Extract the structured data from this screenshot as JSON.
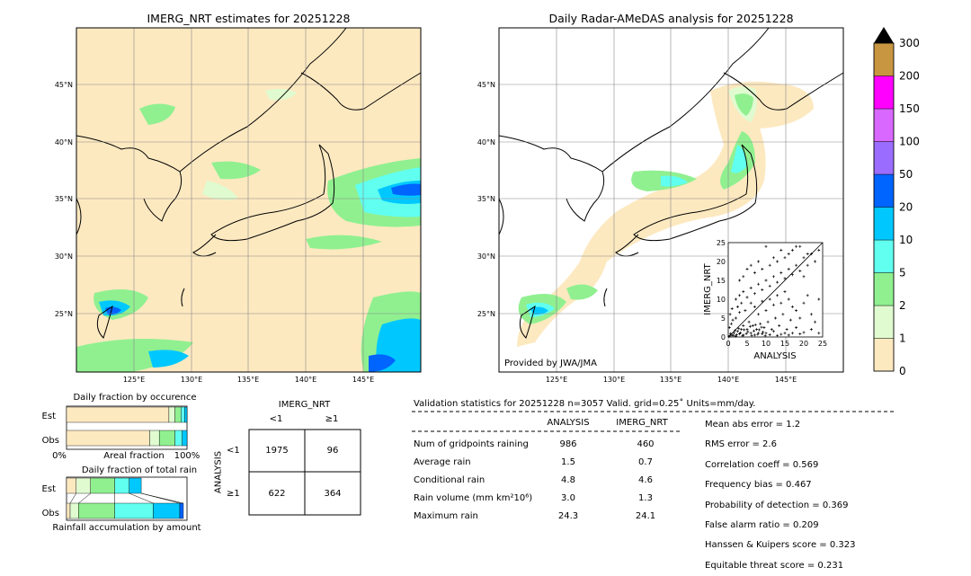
{
  "left_map": {
    "title": "IMERG_NRT estimates for 20251228",
    "lat_ticks": [
      "45°N",
      "40°N",
      "35°N",
      "30°N",
      "25°N"
    ],
    "lon_ticks": [
      "125°E",
      "130°E",
      "135°E",
      "140°E",
      "145°E"
    ]
  },
  "right_map": {
    "title": "Daily Radar-AMeDAS analysis for 20251228",
    "lat_ticks": [
      "45°N",
      "40°N",
      "35°N",
      "30°N",
      "25°N"
    ],
    "lon_ticks": [
      "125°E",
      "130°E",
      "135°E",
      "140°E",
      "145°E"
    ],
    "credit": "Provided by JWA/JMA"
  },
  "colorbar": {
    "levels": [
      "0",
      "1",
      "2",
      "5",
      "10",
      "20",
      "50",
      "100",
      "150",
      "200",
      "300"
    ],
    "colors": [
      "#fde9c0",
      "#e0fbd0",
      "#90f090",
      "#60fff0",
      "#00c8ff",
      "#0064ff",
      "#9a6cff",
      "#d868ff",
      "#ff00ff",
      "#c89640"
    ],
    "extend_color": "#000000"
  },
  "scatter": {
    "xlabel": "ANALYSIS",
    "ylabel": "IMERG_NRT",
    "ticks": [
      "0",
      "5",
      "10",
      "15",
      "20",
      "25"
    ]
  },
  "chart_data": [
    {
      "type": "scatter",
      "xlabel": "ANALYSIS",
      "ylabel": "IMERG_NRT",
      "xlim": [
        0,
        25
      ],
      "ylim": [
        0,
        25
      ],
      "points": [
        [
          0.5,
          0.3
        ],
        [
          1,
          0.5
        ],
        [
          1.5,
          1
        ],
        [
          2,
          0.2
        ],
        [
          2.5,
          1.5
        ],
        [
          3,
          0.8
        ],
        [
          3.5,
          2
        ],
        [
          4,
          0.5
        ],
        [
          0.3,
          2.5
        ],
        [
          0.8,
          3.5
        ],
        [
          1.2,
          4.5
        ],
        [
          0.5,
          6
        ],
        [
          1,
          7.5
        ],
        [
          2,
          5
        ],
        [
          2.5,
          8
        ],
        [
          3,
          6.5
        ],
        [
          3.5,
          9
        ],
        [
          4,
          3
        ],
        [
          4.5,
          7
        ],
        [
          5,
          2
        ],
        [
          5.5,
          4
        ],
        [
          6,
          1
        ],
        [
          6.5,
          3
        ],
        [
          7,
          0.5
        ],
        [
          7.5,
          2
        ],
        [
          8,
          1
        ],
        [
          8.5,
          3.5
        ],
        [
          9,
          0.8
        ],
        [
          9.5,
          2.5
        ],
        [
          10,
          1
        ],
        [
          10.5,
          4
        ],
        [
          11,
          0.6
        ],
        [
          11.5,
          2
        ],
        [
          12,
          1.5
        ],
        [
          12.5,
          5
        ],
        [
          13,
          0.4
        ],
        [
          13.5,
          3
        ],
        [
          14,
          0.7
        ],
        [
          14.5,
          6
        ],
        [
          15,
          1
        ],
        [
          15.5,
          2
        ],
        [
          16,
          0.5
        ],
        [
          16.5,
          4.5
        ],
        [
          17,
          1
        ],
        [
          18,
          2.5
        ],
        [
          19,
          0.8
        ],
        [
          20,
          1.2
        ],
        [
          22,
          2
        ],
        [
          23,
          4
        ],
        [
          24,
          1
        ],
        [
          2,
          10
        ],
        [
          3,
          11
        ],
        [
          4,
          12
        ],
        [
          5,
          10.5
        ],
        [
          6,
          13
        ],
        [
          7,
          11.5
        ],
        [
          8,
          14
        ],
        [
          9,
          12.5
        ],
        [
          10,
          15
        ],
        [
          11,
          13.5
        ],
        [
          12,
          16
        ],
        [
          13,
          14.5
        ],
        [
          14,
          17
        ],
        [
          15,
          15.5
        ],
        [
          16,
          18
        ],
        [
          17,
          16.5
        ],
        [
          18,
          19
        ],
        [
          19,
          17.5
        ],
        [
          20,
          21
        ],
        [
          21,
          19
        ],
        [
          22,
          22
        ],
        [
          23,
          20
        ],
        [
          24,
          23
        ],
        [
          10,
          24
        ],
        [
          12,
          21
        ],
        [
          8,
          20
        ],
        [
          14,
          23
        ],
        [
          18,
          24
        ],
        [
          16,
          22
        ],
        [
          20,
          16
        ],
        [
          6,
          9
        ],
        [
          7,
          8
        ],
        [
          8,
          6
        ],
        [
          9,
          9.5
        ],
        [
          10,
          7
        ],
        [
          11,
          10
        ],
        [
          12,
          8.5
        ],
        [
          13,
          11
        ],
        [
          14,
          9
        ],
        [
          15,
          12
        ],
        [
          16,
          10
        ],
        [
          17,
          8
        ],
        [
          18,
          7
        ],
        [
          19,
          5
        ],
        [
          20,
          9
        ],
        [
          21,
          11
        ],
        [
          22,
          6
        ],
        [
          24,
          10
        ],
        [
          5,
          18
        ],
        [
          7,
          17
        ],
        [
          3,
          15
        ],
        [
          4,
          16
        ],
        [
          6,
          19
        ],
        [
          9,
          18
        ],
        [
          11,
          19
        ],
        [
          13,
          20
        ],
        [
          15,
          21
        ],
        [
          17,
          23
        ],
        [
          19,
          24
        ],
        [
          21,
          22
        ],
        [
          0.2,
          0.1
        ],
        [
          0.6,
          0.9
        ],
        [
          1.4,
          0.4
        ],
        [
          1.8,
          1.7
        ],
        [
          2.2,
          0.6
        ],
        [
          2.8,
          2.2
        ],
        [
          3.2,
          1.1
        ],
        [
          3.8,
          0.3
        ],
        [
          4.2,
          1.9
        ],
        [
          4.8,
          0.9
        ],
        [
          5.2,
          1.4
        ],
        [
          5.8,
          2.8
        ],
        [
          6.2,
          0.4
        ],
        [
          6.8,
          1.6
        ],
        [
          7.2,
          3.2
        ],
        [
          7.8,
          0.7
        ],
        [
          8.2,
          1.9
        ],
        [
          8.8,
          2.6
        ],
        [
          9.2,
          1.3
        ],
        [
          9.8,
          0.3
        ]
      ]
    },
    {
      "type": "bar",
      "title": "Daily fraction by occurence",
      "categories": [
        "Est",
        "Obs"
      ],
      "xlabel": "Areal fraction",
      "x_tick_labels": [
        "0%",
        "100%"
      ],
      "series": [
        {
          "color": "#fde9c0",
          "values": [
            0.85,
            0.69
          ]
        },
        {
          "color": "#e0fbd0",
          "values": [
            0.05,
            0.08
          ]
        },
        {
          "color": "#90f090",
          "values": [
            0.05,
            0.13
          ]
        },
        {
          "color": "#60fff0",
          "values": [
            0.03,
            0.06
          ]
        },
        {
          "color": "#00c8ff",
          "values": [
            0.02,
            0.04
          ]
        }
      ]
    },
    {
      "type": "bar",
      "title": "Daily fraction of total rain",
      "categories": [
        "Est",
        "Obs"
      ],
      "xlabel": "Rainfall accumulation by amount",
      "series": [
        {
          "color": "#fde9c0",
          "values": [
            0.08,
            0.03
          ]
        },
        {
          "color": "#e0fbd0",
          "values": [
            0.12,
            0.07
          ]
        },
        {
          "color": "#90f090",
          "values": [
            0.2,
            0.3
          ]
        },
        {
          "color": "#60fff0",
          "values": [
            0.12,
            0.32
          ]
        },
        {
          "color": "#00c8ff",
          "values": [
            0.1,
            0.22
          ]
        },
        {
          "color": "#0064ff",
          "values": [
            0.0,
            0.03
          ]
        }
      ]
    },
    {
      "type": "table",
      "title": "Contingency table",
      "col_header": "IMERG_NRT",
      "row_header": "ANALYSIS",
      "col_labels": [
        "<1",
        "≥1"
      ],
      "row_labels": [
        "<1",
        "≥1"
      ],
      "cells": [
        [
          "1975",
          "96"
        ],
        [
          "622",
          "364"
        ]
      ]
    },
    {
      "type": "table",
      "title": "Validation statistics for 20251228  n=3057 Valid. grid=0.25˚ Units=mm/day.",
      "columns": [
        "ANALYSIS",
        "IMERG_NRT"
      ],
      "rows": [
        {
          "label": "Num of gridpoints raining",
          "values": [
            "986",
            "460"
          ]
        },
        {
          "label": "Average rain",
          "values": [
            "1.5",
            "0.7"
          ]
        },
        {
          "label": "Conditional rain",
          "values": [
            "4.8",
            "4.6"
          ]
        },
        {
          "label": "Rain volume (mm km²10⁶)",
          "values": [
            "3.0",
            "1.3"
          ]
        },
        {
          "label": "Maximum rain",
          "values": [
            "24.3",
            "24.1"
          ]
        }
      ],
      "scores": [
        "Mean abs error =    1.2",
        "RMS error =    2.6",
        "Correlation coeff =  0.569",
        "Frequency bias =  0.467",
        "Probability of detection =  0.369",
        "False alarm ratio =  0.209",
        "Hanssen & Kuipers score =  0.323",
        "Equitable threat score =  0.231"
      ]
    }
  ]
}
